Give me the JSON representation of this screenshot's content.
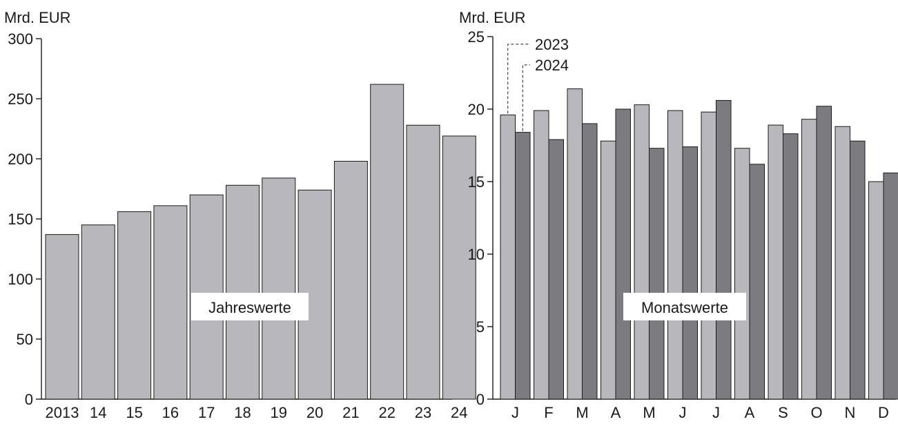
{
  "colors": {
    "bar_light": "#b8b8bc",
    "bar_dark": "#7c7c80",
    "outline": "#1a1a1a",
    "background": "#ffffff"
  },
  "chart_data": [
    {
      "type": "bar",
      "unit_label": "Mrd. EUR",
      "annotation": "Jahreswerte",
      "categories": [
        "2013",
        "14",
        "15",
        "16",
        "17",
        "18",
        "19",
        "20",
        "21",
        "22",
        "23",
        "24"
      ],
      "values": [
        137,
        145,
        156,
        161,
        170,
        178,
        184,
        174,
        198,
        262,
        228,
        219
      ],
      "ylim": [
        0,
        300
      ],
      "yticks": [
        0,
        50,
        100,
        150,
        200,
        250,
        300
      ],
      "grid": false
    },
    {
      "type": "bar",
      "unit_label": "Mrd. EUR",
      "annotation": "Monatswerte",
      "categories": [
        "J",
        "F",
        "M",
        "A",
        "M",
        "J",
        "J",
        "A",
        "S",
        "O",
        "N",
        "D"
      ],
      "series": [
        {
          "name": "2023",
          "values": [
            19.6,
            19.9,
            21.4,
            17.8,
            20.3,
            19.9,
            19.8,
            17.3,
            18.9,
            19.3,
            18.8,
            15.0
          ]
        },
        {
          "name": "2024",
          "values": [
            18.4,
            17.9,
            19.0,
            20.0,
            17.3,
            17.4,
            20.6,
            16.2,
            18.3,
            20.2,
            17.8,
            15.6
          ]
        }
      ],
      "ylim": [
        0,
        25
      ],
      "yticks": [
        0,
        5,
        10,
        15,
        20,
        25
      ],
      "legend": "top-left",
      "grid": false
    }
  ]
}
